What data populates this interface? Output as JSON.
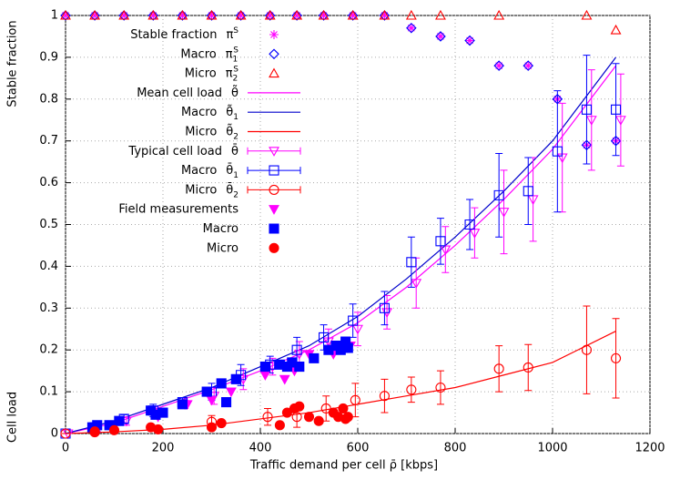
{
  "chart_data": {
    "type": "line",
    "xlabel": "Traffic demand per cell ρ̄ [kbps]",
    "ylabel": "Stable fraction",
    "ylabel2": "Cell load",
    "xlim": [
      0,
      1200
    ],
    "xticks": [
      0,
      200,
      400,
      600,
      800,
      1000,
      1200
    ],
    "ylim": [
      0,
      1
    ],
    "yticks": [
      0,
      0.1,
      0.2,
      0.3,
      0.4,
      0.5,
      0.6,
      0.7,
      0.8,
      0.9,
      1
    ],
    "grid": true,
    "legend": "upper left",
    "series": [
      {
        "name": "Stable fraction",
        "symbol": "π",
        "sup": "S",
        "color": "#ff00ff",
        "style": "points",
        "marker": "asterisk",
        "x": [
          0,
          60,
          120,
          180,
          240,
          300,
          360,
          420,
          475,
          530,
          590,
          655,
          710,
          770,
          830,
          890,
          950,
          1010,
          1070,
          1130
        ],
        "values": [
          1,
          1,
          1,
          1,
          1,
          1,
          1,
          1,
          1,
          1,
          1,
          1,
          0.97,
          0.95,
          0.94,
          0.88,
          0.88,
          0.8,
          0.69,
          0.7
        ]
      },
      {
        "name": "Macro",
        "symbol": "π",
        "sub": "1",
        "sup": "S",
        "color": "#0000ff",
        "style": "points",
        "marker": "diamond",
        "x": [
          0,
          60,
          120,
          180,
          240,
          300,
          360,
          420,
          475,
          530,
          590,
          655,
          710,
          770,
          830,
          890,
          950,
          1010,
          1070,
          1130
        ],
        "values": [
          1,
          1,
          1,
          1,
          1,
          1,
          1,
          1,
          1,
          1,
          1,
          1,
          0.97,
          0.95,
          0.94,
          0.88,
          0.88,
          0.8,
          0.69,
          0.7
        ]
      },
      {
        "name": "Micro",
        "symbol": "π",
        "sub": "2",
        "sup": "S",
        "color": "#ff0000",
        "style": "points",
        "marker": "triangle",
        "x": [
          0,
          60,
          120,
          180,
          240,
          300,
          360,
          420,
          475,
          530,
          590,
          655,
          710,
          770,
          890,
          1070,
          1130
        ],
        "values": [
          1,
          1,
          1,
          1,
          1,
          1,
          1,
          1,
          1,
          1,
          1,
          1,
          1,
          1,
          1,
          1,
          0.965
        ]
      },
      {
        "name": "Mean cell load",
        "symbol": "θ̃",
        "color": "#ff00ff",
        "style": "line",
        "x": [
          0,
          100,
          200,
          300,
          400,
          500,
          600,
          700,
          800,
          900,
          1000,
          1130
        ],
        "values": [
          0,
          0.025,
          0.065,
          0.105,
          0.15,
          0.2,
          0.265,
          0.35,
          0.45,
          0.56,
          0.68,
          0.88
        ]
      },
      {
        "name": "Macro",
        "symbol": "θ̃",
        "sub": "1",
        "color": "#0000cc",
        "style": "line",
        "x": [
          0,
          100,
          200,
          300,
          400,
          500,
          600,
          700,
          800,
          900,
          1000,
          1130
        ],
        "values": [
          0,
          0.03,
          0.07,
          0.11,
          0.16,
          0.21,
          0.28,
          0.37,
          0.47,
          0.58,
          0.7,
          0.9
        ]
      },
      {
        "name": "Micro",
        "symbol": "θ̃",
        "sub": "2",
        "color": "#ff0000",
        "style": "line",
        "x": [
          0,
          100,
          200,
          300,
          400,
          500,
          600,
          700,
          800,
          900,
          1000,
          1130
        ],
        "values": [
          0,
          0.004,
          0.01,
          0.02,
          0.035,
          0.05,
          0.07,
          0.09,
          0.11,
          0.14,
          0.17,
          0.245
        ]
      },
      {
        "name": "Typical cell load",
        "symbol": "θ̄",
        "color": "#ff00ff",
        "style": "errorbars",
        "marker": "tridown",
        "x": [
          5,
          65,
          125,
          185,
          245,
          305,
          365,
          425,
          480,
          540,
          600,
          660,
          720,
          780,
          840,
          900,
          960,
          1020,
          1080,
          1140
        ],
        "values": [
          0,
          0.01,
          0.03,
          0.05,
          0.07,
          0.09,
          0.13,
          0.16,
          0.19,
          0.22,
          0.25,
          0.29,
          0.36,
          0.44,
          0.48,
          0.53,
          0.56,
          0.66,
          0.75,
          0.75
        ],
        "errors": [
          0,
          0.005,
          0.01,
          0.015,
          0.01,
          0.02,
          0.025,
          0.02,
          0.03,
          0.03,
          0.04,
          0.04,
          0.06,
          0.055,
          0.06,
          0.1,
          0.1,
          0.13,
          0.12,
          0.11
        ]
      },
      {
        "name": "Macro",
        "symbol": "θ̄",
        "sub": "1",
        "color": "#0000ff",
        "style": "errorbars",
        "marker": "square",
        "x": [
          0,
          60,
          120,
          180,
          240,
          300,
          360,
          420,
          475,
          530,
          590,
          655,
          710,
          770,
          830,
          890,
          950,
          1010,
          1070,
          1130
        ],
        "values": [
          0,
          0.015,
          0.035,
          0.055,
          0.075,
          0.1,
          0.14,
          0.165,
          0.2,
          0.23,
          0.27,
          0.3,
          0.41,
          0.46,
          0.5,
          0.57,
          0.58,
          0.675,
          0.775,
          0.775
        ],
        "errors": [
          0,
          0.005,
          0.01,
          0.015,
          0.01,
          0.02,
          0.025,
          0.02,
          0.03,
          0.03,
          0.04,
          0.04,
          0.06,
          0.055,
          0.06,
          0.1,
          0.08,
          0.145,
          0.13,
          0.11
        ]
      },
      {
        "name": "Micro",
        "symbol": "θ̄",
        "sub": "2",
        "color": "#ff0000",
        "style": "errorbars",
        "marker": "circle",
        "x": [
          0,
          60,
          300,
          415,
          475,
          535,
          595,
          655,
          710,
          770,
          890,
          950,
          1070,
          1130
        ],
        "values": [
          0,
          0.003,
          0.028,
          0.04,
          0.04,
          0.06,
          0.08,
          0.09,
          0.105,
          0.11,
          0.155,
          0.158,
          0.2,
          0.18
        ],
        "errors": [
          0,
          0.002,
          0.015,
          0.02,
          0.025,
          0.03,
          0.04,
          0.04,
          0.03,
          0.04,
          0.055,
          0.055,
          0.105,
          0.095
        ]
      },
      {
        "name": "Field measurements",
        "color": "#ff00ff",
        "style": "points",
        "marker": "tridown-filled",
        "x": [
          60,
          100,
          190,
          250,
          300,
          340,
          410,
          450,
          470,
          500,
          550,
          585
        ],
        "values": [
          0.01,
          0.02,
          0.04,
          0.07,
          0.08,
          0.1,
          0.14,
          0.13,
          0.15,
          0.19,
          0.19,
          0.21
        ]
      },
      {
        "name": "Macro",
        "color": "#0000ff",
        "style": "points",
        "marker": "square-filled",
        "x": [
          55,
          65,
          90,
          110,
          175,
          185,
          200,
          240,
          290,
          320,
          330,
          350,
          410,
          440,
          455,
          465,
          480,
          510,
          540,
          555,
          565,
          575,
          580
        ],
        "values": [
          0.015,
          0.02,
          0.02,
          0.03,
          0.055,
          0.045,
          0.05,
          0.07,
          0.1,
          0.12,
          0.075,
          0.13,
          0.16,
          0.165,
          0.16,
          0.17,
          0.16,
          0.18,
          0.2,
          0.21,
          0.2,
          0.22,
          0.205
        ]
      },
      {
        "name": "Micro",
        "color": "#ff0000",
        "style": "points",
        "marker": "circle-filled",
        "x": [
          60,
          100,
          175,
          190,
          300,
          320,
          440,
          455,
          470,
          480,
          500,
          520,
          550,
          560,
          570,
          575,
          580
        ],
        "values": [
          0.005,
          0.008,
          0.015,
          0.01,
          0.015,
          0.025,
          0.02,
          0.05,
          0.06,
          0.065,
          0.04,
          0.03,
          0.05,
          0.04,
          0.06,
          0.035,
          0.04
        ]
      }
    ]
  }
}
